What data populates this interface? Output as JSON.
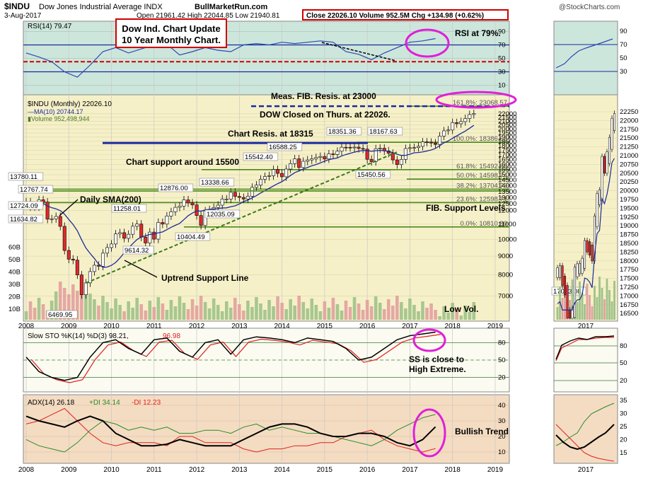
{
  "header": {
    "symbol": "$INDU",
    "name": "Dow Jones Industrial Average INDX",
    "date": "3-Aug-2017",
    "source": "BullMarketRun.com",
    "ohlc": "Open 21961.42  High 22044.85  Low 21940.81",
    "close_line": "Close 22026.10  Volume 952.5M  Chg +134.98 (+0.62%)",
    "copyright": "@StockCharts.com",
    "title_box": [
      "Dow Ind. Chart Update",
      "10 Year Monthly Chart."
    ]
  },
  "colors": {
    "price_panel_bg": "#f6f0c8",
    "rsi_bg": "#cde6dc",
    "sto_bg": "#fbfbf1",
    "adx_bg": "#f4dcc2",
    "up_candle": "#ffffff",
    "down_candle": "#e0282c",
    "ma_line": "#1a2a9a",
    "fib_line": "#4a8a1a",
    "magenta": "#e020d8",
    "red_box": "#d00000"
  },
  "chart_data": [
    {
      "type": "line",
      "panel": "RSI",
      "label": "RSI(14) 79.47",
      "x": [
        2008.0,
        2008.3,
        2008.6,
        2008.9,
        2009.2,
        2009.5,
        2009.8,
        2010.1,
        2010.4,
        2010.7,
        2011.0,
        2011.3,
        2011.6,
        2011.9,
        2012.2,
        2012.5,
        2012.8,
        2013.1,
        2013.4,
        2013.7,
        2014.0,
        2014.3,
        2014.6,
        2014.9,
        2015.2,
        2015.5,
        2015.8,
        2016.1,
        2016.4,
        2016.7,
        2017.0,
        2017.3,
        2017.6
      ],
      "values": [
        58,
        52,
        45,
        30,
        22,
        40,
        60,
        66,
        58,
        64,
        70,
        71,
        55,
        60,
        66,
        62,
        60,
        70,
        72,
        70,
        74,
        72,
        74,
        76,
        74,
        60,
        56,
        48,
        58,
        66,
        74,
        76,
        79.47
      ],
      "levels": [
        10,
        30,
        50,
        70,
        90
      ]
    },
    {
      "type": "bar",
      "panel": "Price",
      "label": "$INDU (Monthly) 22026.10",
      "ma_label": "MA(10) 20744.17",
      "volume_label": "Volume 952,498,944",
      "y_ticks": [
        7000,
        8000,
        9000,
        10000,
        11000,
        12000,
        12500,
        13000,
        13500,
        14000,
        14500,
        15000,
        15500,
        16000,
        16500,
        17000,
        17500,
        18000,
        18500,
        19000,
        19500,
        20000,
        20500,
        21000,
        21500,
        22000
      ],
      "x_ticks": [
        "2008",
        "2009",
        "2010",
        "2011",
        "2012",
        "2013",
        "2014",
        "2015",
        "2016",
        "2017",
        "2018",
        "2019"
      ],
      "volume_ticks": [
        "10B",
        "20B",
        "30B",
        "40B",
        "50B",
        "60B"
      ],
      "close_series": [
        [
          2008.0,
          12650
        ],
        [
          2008.1,
          12266
        ],
        [
          2008.2,
          12262
        ],
        [
          2008.3,
          12820
        ],
        [
          2008.4,
          12638
        ],
        [
          2008.5,
          11350
        ],
        [
          2008.6,
          11378
        ],
        [
          2008.7,
          11543
        ],
        [
          2008.8,
          10850
        ],
        [
          2008.9,
          9325
        ],
        [
          2009.0,
          8829
        ],
        [
          2009.1,
          8776
        ],
        [
          2009.2,
          8000
        ],
        [
          2009.3,
          7062
        ],
        [
          2009.4,
          7609
        ],
        [
          2009.5,
          8168
        ],
        [
          2009.6,
          8500
        ],
        [
          2009.7,
          8447
        ],
        [
          2009.8,
          9171
        ],
        [
          2009.9,
          9496
        ],
        [
          2010.0,
          9713
        ],
        [
          2010.1,
          10344
        ],
        [
          2010.2,
          10428
        ],
        [
          2010.3,
          10067
        ],
        [
          2010.4,
          10325
        ],
        [
          2010.5,
          10857
        ],
        [
          2010.6,
          11008
        ],
        [
          2010.7,
          10136
        ],
        [
          2010.8,
          9774
        ],
        [
          2010.9,
          10465
        ],
        [
          2011.0,
          10014
        ],
        [
          2011.1,
          11118
        ],
        [
          2011.2,
          11006
        ],
        [
          2011.3,
          11578
        ],
        [
          2011.4,
          11892
        ],
        [
          2011.5,
          12226
        ],
        [
          2011.6,
          12319
        ],
        [
          2011.7,
          12810
        ],
        [
          2011.8,
          12570
        ],
        [
          2011.9,
          12414
        ],
        [
          2012.0,
          11614
        ],
        [
          2012.1,
          10913
        ],
        [
          2012.2,
          11955
        ],
        [
          2012.3,
          12046
        ],
        [
          2012.4,
          12218
        ],
        [
          2012.5,
          12393
        ],
        [
          2012.6,
          12880
        ],
        [
          2012.7,
          12880
        ],
        [
          2012.8,
          13437
        ],
        [
          2012.9,
          13096
        ],
        [
          2013.0,
          13008
        ],
        [
          2013.1,
          12880
        ],
        [
          2013.2,
          13104
        ],
        [
          2013.3,
          13860
        ],
        [
          2013.4,
          14054
        ],
        [
          2013.5,
          14578
        ],
        [
          2013.6,
          14840
        ],
        [
          2013.7,
          14910
        ],
        [
          2013.8,
          15500
        ],
        [
          2013.9,
          15129
        ],
        [
          2014.0,
          14810
        ],
        [
          2014.1,
          15545
        ],
        [
          2014.2,
          16086
        ],
        [
          2014.3,
          16576
        ],
        [
          2014.4,
          15699
        ],
        [
          2014.5,
          16321
        ],
        [
          2014.6,
          16457
        ],
        [
          2014.7,
          16580
        ],
        [
          2014.8,
          16717
        ],
        [
          2014.9,
          16826
        ],
        [
          2015.0,
          16563
        ],
        [
          2015.1,
          17098
        ],
        [
          2015.2,
          17042
        ],
        [
          2015.3,
          17390
        ],
        [
          2015.4,
          17828
        ],
        [
          2015.5,
          17823
        ],
        [
          2015.6,
          17776
        ],
        [
          2015.7,
          17840
        ],
        [
          2015.8,
          17690
        ],
        [
          2015.9,
          17620
        ],
        [
          2016.0,
          16528
        ],
        [
          2016.1,
          16285
        ],
        [
          2016.2,
          17663
        ],
        [
          2016.3,
          17720
        ],
        [
          2016.4,
          17425
        ],
        [
          2016.5,
          17165
        ],
        [
          2016.6,
          16466
        ],
        [
          2016.7,
          15988
        ],
        [
          2016.8,
          16516
        ],
        [
          2016.9,
          17685
        ],
        [
          2017.0,
          17774
        ],
        [
          2017.1,
          17787
        ],
        [
          2017.2,
          17930
        ],
        [
          2017.3,
          18432
        ],
        [
          2017.4,
          18400
        ],
        [
          2017.5,
          18308
        ],
        [
          2017.6,
          18142
        ],
        [
          2017.7,
          19124
        ],
        [
          2017.8,
          19763
        ],
        [
          2017.9,
          19864
        ],
        [
          2018.0,
          20812
        ],
        [
          2018.1,
          20663
        ],
        [
          2018.2,
          20940
        ],
        [
          2018.3,
          21350
        ],
        [
          2018.4,
          21891
        ],
        [
          2018.5,
          22026
        ]
      ],
      "annotations": [
        {
          "text": "13780.11",
          "kind": "price"
        },
        {
          "text": "12767.74",
          "kind": "price"
        },
        {
          "text": "12724.09",
          "kind": "price"
        },
        {
          "text": "11634.82",
          "kind": "price"
        },
        {
          "text": "6469.95",
          "kind": "price"
        },
        {
          "text": "9614.32",
          "kind": "price"
        },
        {
          "text": "11258.01",
          "kind": "price"
        },
        {
          "text": "10404.49",
          "kind": "price"
        },
        {
          "text": "12876.00",
          "kind": "price"
        },
        {
          "text": "13338.66",
          "kind": "price"
        },
        {
          "text": "12035.09",
          "kind": "price"
        },
        {
          "text": "15542.40",
          "kind": "price"
        },
        {
          "text": "16588.25",
          "kind": "price"
        },
        {
          "text": "18351.36",
          "kind": "price"
        },
        {
          "text": "18167.63",
          "kind": "price"
        },
        {
          "text": "15450.56",
          "kind": "price"
        },
        {
          "text": "17063.08",
          "kind": "price"
        }
      ],
      "fib_levels": [
        {
          "label": "161.8%: 23068.57",
          "value": 23068.57
        },
        {
          "label": "100.0%: 18386.68",
          "value": 18386.68
        },
        {
          "label": "61.8%: 15492.69",
          "value": 15492.69
        },
        {
          "label": "50.0%: 14598.74",
          "value": 14598.74
        },
        {
          "label": "38.2%: 13704.79",
          "value": 13704.79
        },
        {
          "label": "23.6%: 12598.71",
          "value": 12598.71
        },
        {
          "label": "0.0%: 10810.80",
          "value": 10810.8
        }
      ],
      "notes": [
        "Meas. FIB. Resis. at 23000",
        "DOW Closed on Thurs. at 22026.",
        "Chart Resis. at 18315",
        "Chart support around 15500",
        "Daily SMA(200)",
        "FIB. Support Levels",
        "Uptrend Support Line",
        "Low Vol.",
        "RSI at 79%."
      ]
    },
    {
      "type": "line",
      "panel": "Slow STO",
      "label": "Slow STO %K(14) %D(3) 98.21,",
      "label_d": "96.98",
      "k_values": [
        55,
        30,
        20,
        15,
        20,
        55,
        80,
        85,
        70,
        60,
        85,
        88,
        65,
        55,
        80,
        85,
        60,
        85,
        90,
        88,
        85,
        80,
        88,
        85,
        82,
        70,
        50,
        55,
        70,
        85,
        92,
        95,
        98.21
      ],
      "levels": [
        20,
        50,
        80
      ],
      "note": "SS is close to\nHigh Extreme."
    },
    {
      "type": "line",
      "panel": "ADX",
      "label": "ADX(14) 26.18",
      "plus_di_label": "+DI 34.14",
      "minus_di_label": "-DI 12.23",
      "adx": [
        33,
        30,
        28,
        26,
        30,
        33,
        30,
        22,
        18,
        14,
        14,
        15,
        18,
        16,
        14,
        14,
        14,
        18,
        22,
        26,
        28,
        28,
        26,
        22,
        20,
        20,
        22,
        22,
        20,
        16,
        14,
        18,
        26.18
      ],
      "plus_di": [
        18,
        14,
        12,
        10,
        16,
        24,
        30,
        28,
        24,
        26,
        24,
        26,
        22,
        22,
        24,
        24,
        22,
        26,
        28,
        24,
        26,
        24,
        22,
        22,
        20,
        18,
        16,
        14,
        18,
        24,
        28,
        32,
        34.14
      ],
      "minus_di": [
        28,
        30,
        34,
        38,
        30,
        22,
        16,
        14,
        16,
        16,
        16,
        14,
        20,
        20,
        16,
        16,
        16,
        12,
        10,
        12,
        12,
        14,
        14,
        16,
        16,
        20,
        22,
        24,
        18,
        14,
        12,
        10,
        12.23
      ],
      "y_ticks": [
        10,
        20,
        30,
        40
      ],
      "note": "Bullish Trend"
    }
  ],
  "inset": {
    "year_label": "2017",
    "price_ticks": [
      "22250",
      "22000",
      "21750",
      "21500",
      "21250",
      "21000",
      "20750",
      "20500",
      "20250",
      "20000",
      "19750",
      "19500",
      "19250",
      "19000",
      "18750",
      "18500",
      "18250",
      "18000",
      "17750",
      "17500",
      "17250",
      "17000",
      "16750",
      "16500"
    ],
    "rsi_ticks": [
      "90",
      "70",
      "50",
      "30"
    ],
    "sto_ticks": [
      "80",
      "50",
      "20"
    ],
    "adx_ticks": [
      "35",
      "30",
      "25",
      "20",
      "15"
    ],
    "low_label": "17063.08"
  }
}
